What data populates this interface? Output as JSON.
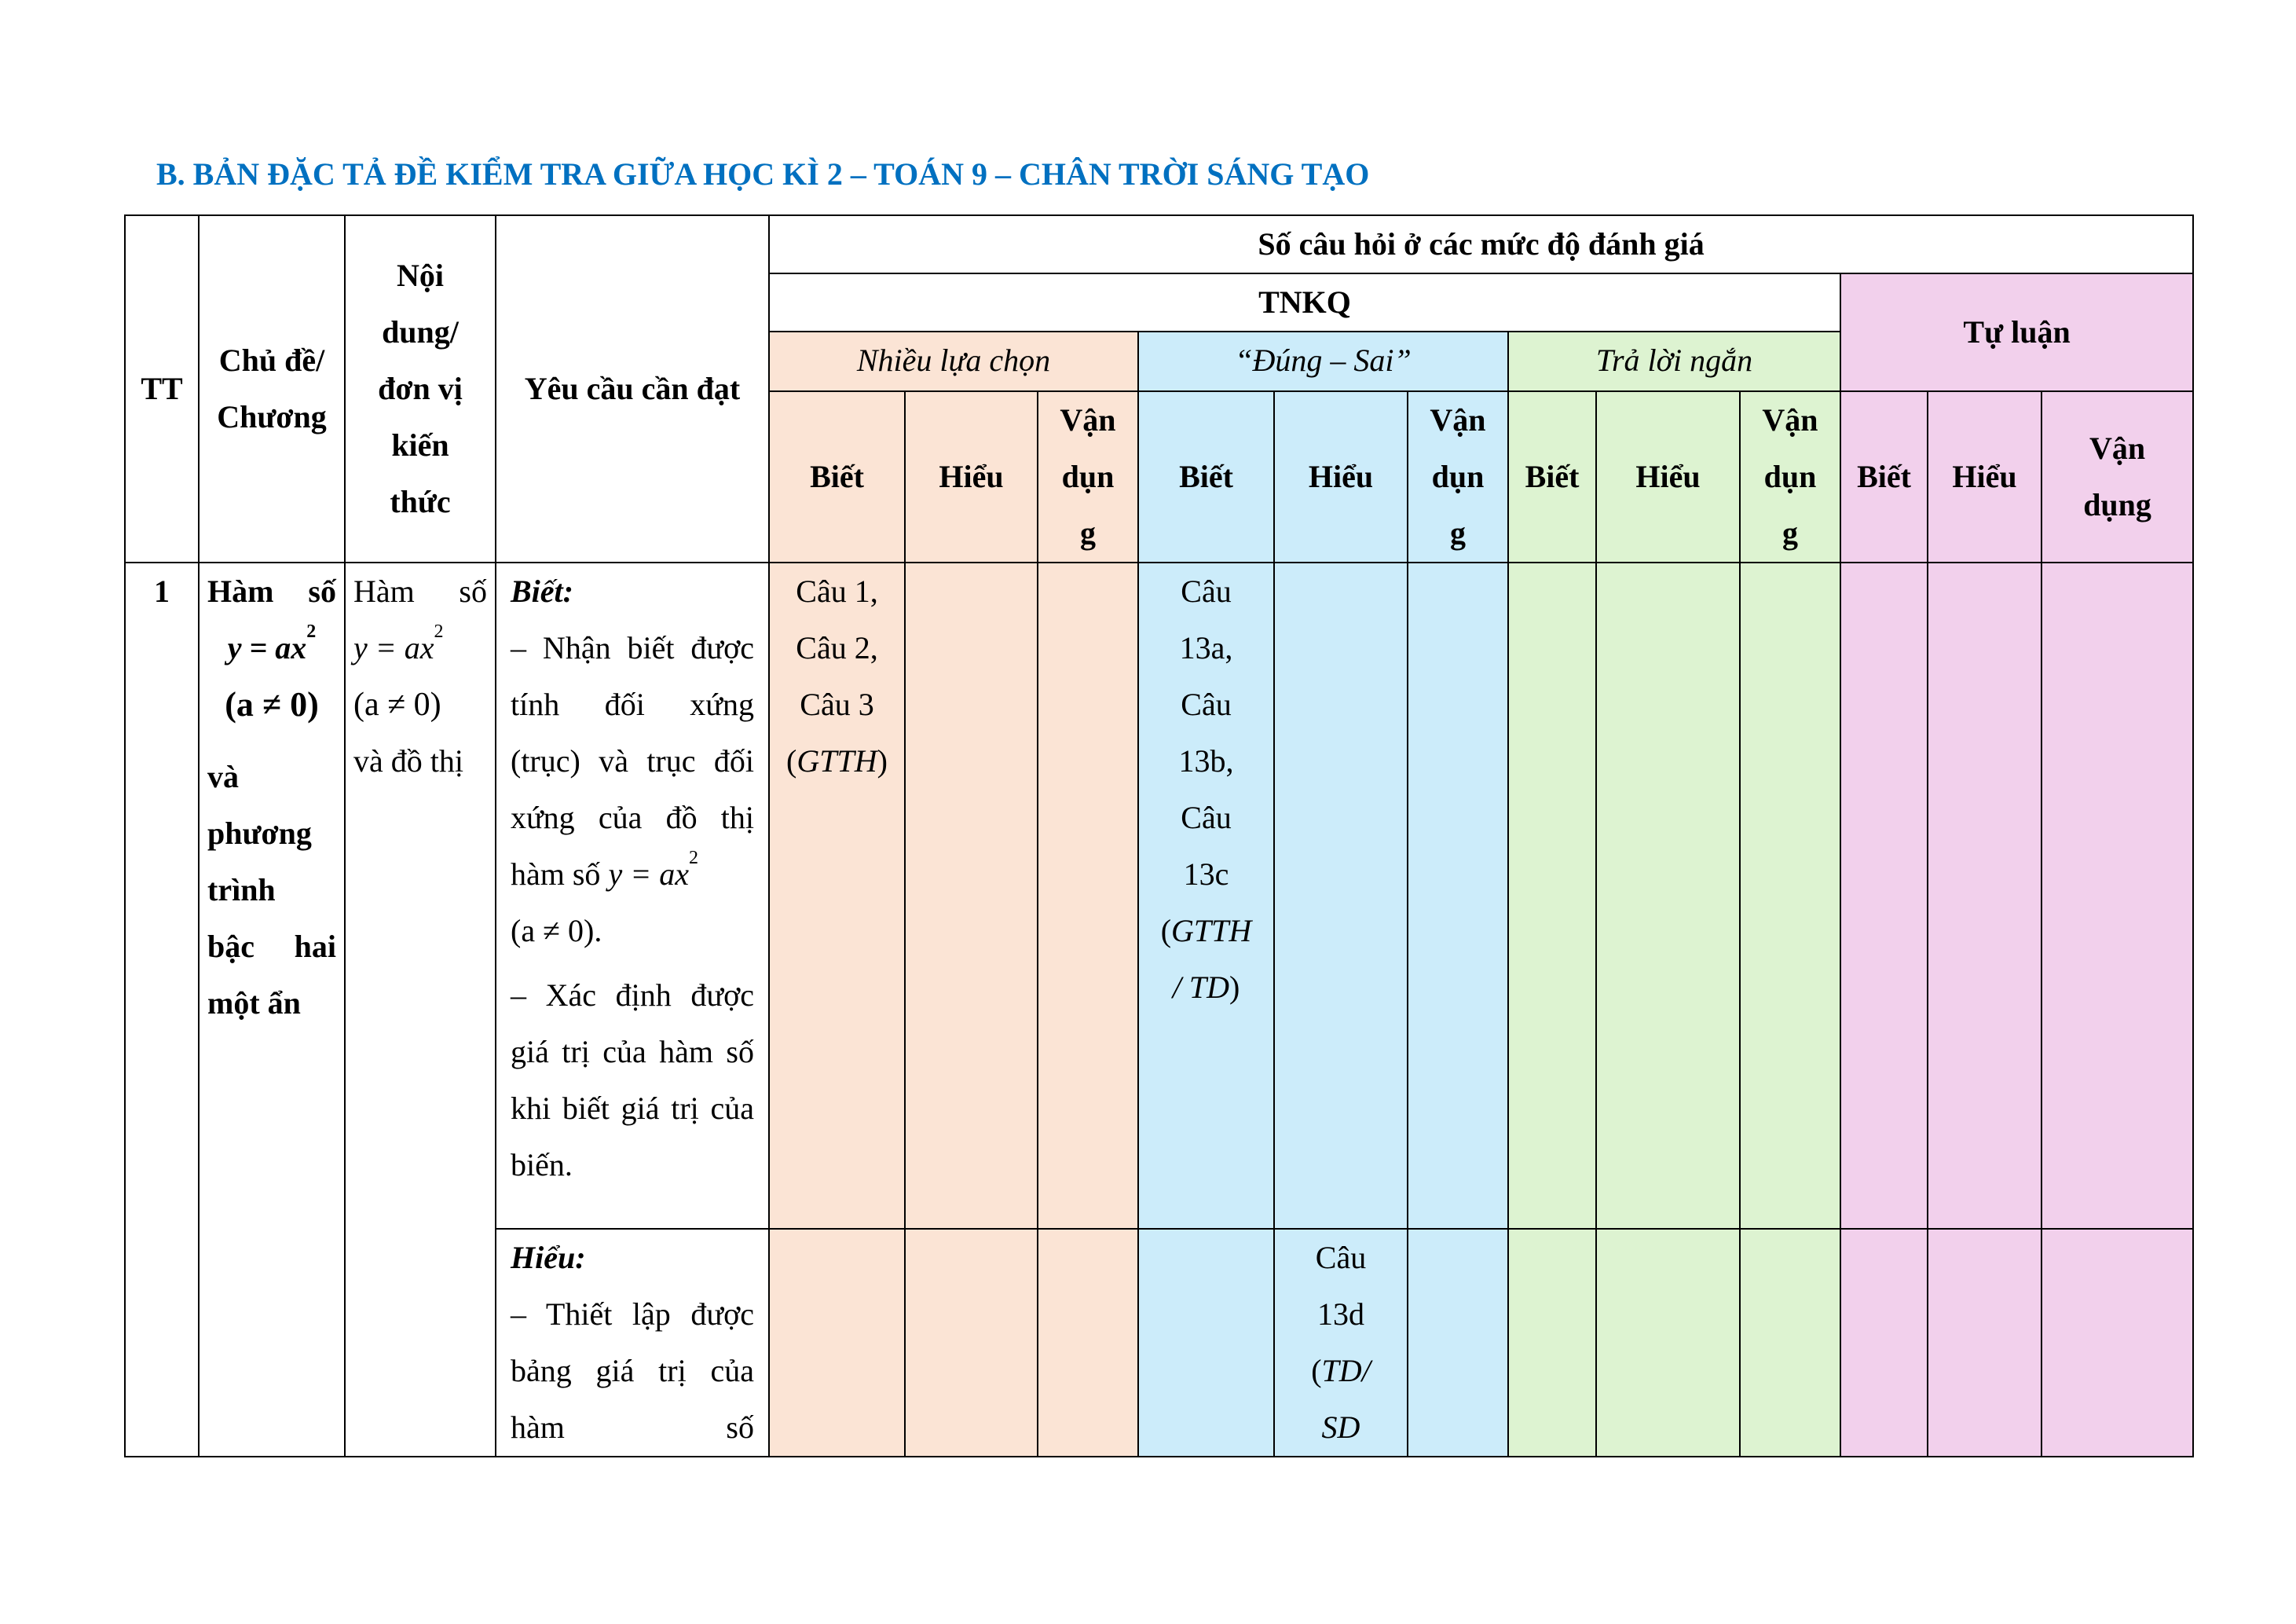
{
  "title": "B. BẢN ĐẶC TẢ ĐỀ KIỂM TRA GIỮA HỌC KÌ 2 – TOÁN 9 – CHÂN TRỜI SÁNG TẠO",
  "colors": {
    "title": "#0070C0",
    "multiple_choice": "#FBE4D5",
    "true_false": "#CCECFA",
    "short_answer": "#DDF3D1",
    "essay": "#F2D0EC"
  },
  "header": {
    "tt": "TT",
    "topic": [
      "Chủ đề/",
      "Chương"
    ],
    "content": [
      "Nội",
      "dung/",
      "đơn vị",
      "kiến",
      "thức"
    ],
    "requirement": "Yêu cầu cần đạt",
    "levels_title": "Số câu hỏi ở các mức độ đánh giá",
    "tnkq": "TNKQ",
    "essay": "Tự luận",
    "groups": [
      "Nhiều lựa chọn",
      "“Đúng – Sai”",
      "Trả lời ngắn"
    ],
    "biet": "Biết",
    "hieu": "Hiểu",
    "van_dung_split": [
      "Vận",
      "dụn",
      "g"
    ],
    "van_dung_essay": [
      "Vận",
      "dụng"
    ]
  },
  "rows": [
    {
      "tt": "1",
      "topic_lines": [
        "Hàm số",
        "và",
        "phương",
        "trình",
        "bậc hai",
        "một ẩn"
      ],
      "content_lines": [
        "Hàm số",
        "và đồ thị"
      ],
      "formula": {
        "y": "y",
        "eq": " = ax",
        "exp": "2",
        "cond": "(a ≠ 0)"
      },
      "biet": {
        "label": "Biết:",
        "items": [
          "– Nhận biết được tính đối xứng (trục) và trục đối xứng của đồ thị hàm số",
          "– Xác định được giá trị của hàm số khi biết giá trị của biến."
        ],
        "cond_suffix": "."
      },
      "biet_mc": [
        "Câu 1,",
        "Câu 2,",
        "Câu 3",
        "GTTH"
      ],
      "biet_tf": [
        "Câu",
        "13a,",
        "Câu",
        "13b,",
        "Câu",
        "13c",
        "GTTH",
        "/ TD"
      ],
      "hieu": {
        "label": "Hiểu:",
        "text": "– Thiết lập được bảng giá trị của hàm số"
      },
      "hieu_tf": [
        "Câu",
        "13d",
        "TD/",
        "SD"
      ]
    }
  ]
}
